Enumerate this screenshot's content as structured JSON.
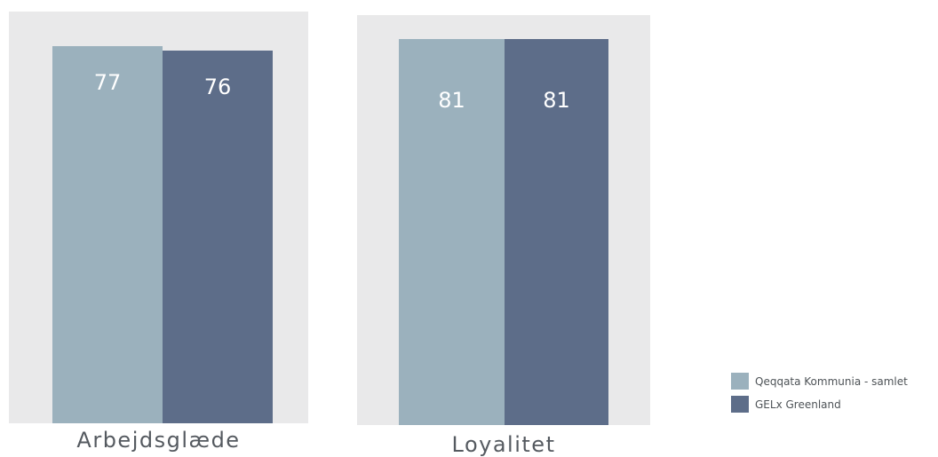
{
  "chart_data": [
    {
      "type": "bar",
      "categories": [
        "Arbejdsglæde"
      ],
      "series": [
        {
          "name": "Qeqqata Kommunia - samlet",
          "values": [
            77
          ]
        },
        {
          "name": "GELx Greenland",
          "values": [
            76
          ]
        }
      ],
      "ylim": [
        0,
        80
      ],
      "grid": false,
      "legend": "right"
    },
    {
      "type": "bar",
      "categories": [
        "Loyalitet"
      ],
      "series": [
        {
          "name": "Qeqqata Kommunia - samlet",
          "values": [
            81
          ]
        },
        {
          "name": "GELx Greenland",
          "values": [
            81
          ]
        }
      ],
      "ylim": [
        0,
        82
      ],
      "grid": false,
      "legend": "right"
    }
  ],
  "legend": {
    "items": [
      {
        "label": "Qeqqata Kommunia - samlet",
        "color": "#9bb1bd"
      },
      {
        "label": "GELx Greenland",
        "color": "#5d6d89"
      }
    ]
  },
  "colors": {
    "series_1": "#9bb1bd",
    "series_2": "#5d6d89",
    "panel_background": "#e9e9ea"
  }
}
